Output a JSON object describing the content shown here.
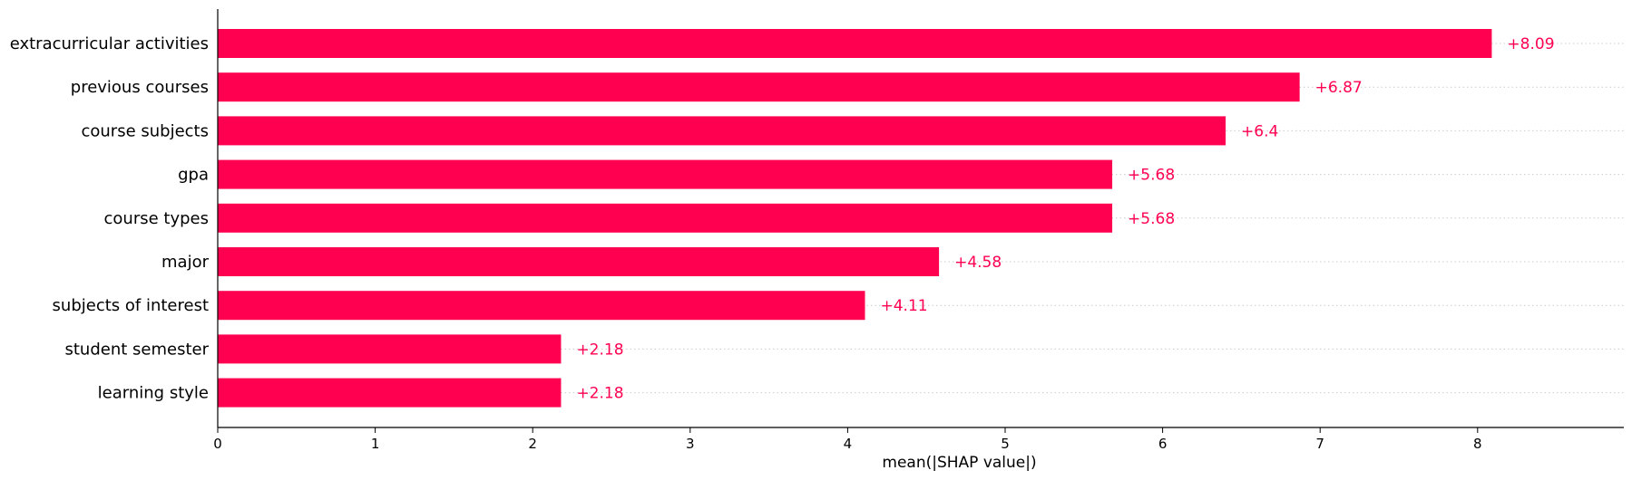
{
  "chart_data": {
    "type": "bar",
    "orientation": "horizontal",
    "categories": [
      "extracurricular activities",
      "previous courses",
      "course subjects",
      "gpa",
      "course types",
      "major",
      "subjects of interest",
      "student semester",
      "learning style"
    ],
    "values": [
      8.09,
      6.87,
      6.4,
      5.68,
      5.68,
      4.58,
      4.11,
      2.18,
      2.18
    ],
    "value_labels": [
      "+8.09",
      "+6.87",
      "+6.4",
      "+5.68",
      "+5.68",
      "+4.58",
      "+4.11",
      "+2.18",
      "+2.18"
    ],
    "xlabel": "mean(|SHAP value|)",
    "ylabel": "",
    "title": "",
    "xlim": [
      0,
      8.9
    ],
    "xticks": [
      "0",
      "1",
      "2",
      "3",
      "4",
      "5",
      "6",
      "7",
      "8"
    ],
    "grid": "dotted horizontal guide lines per bar",
    "bar_color": "#ff0051",
    "gridline_color": "#cccccc"
  }
}
